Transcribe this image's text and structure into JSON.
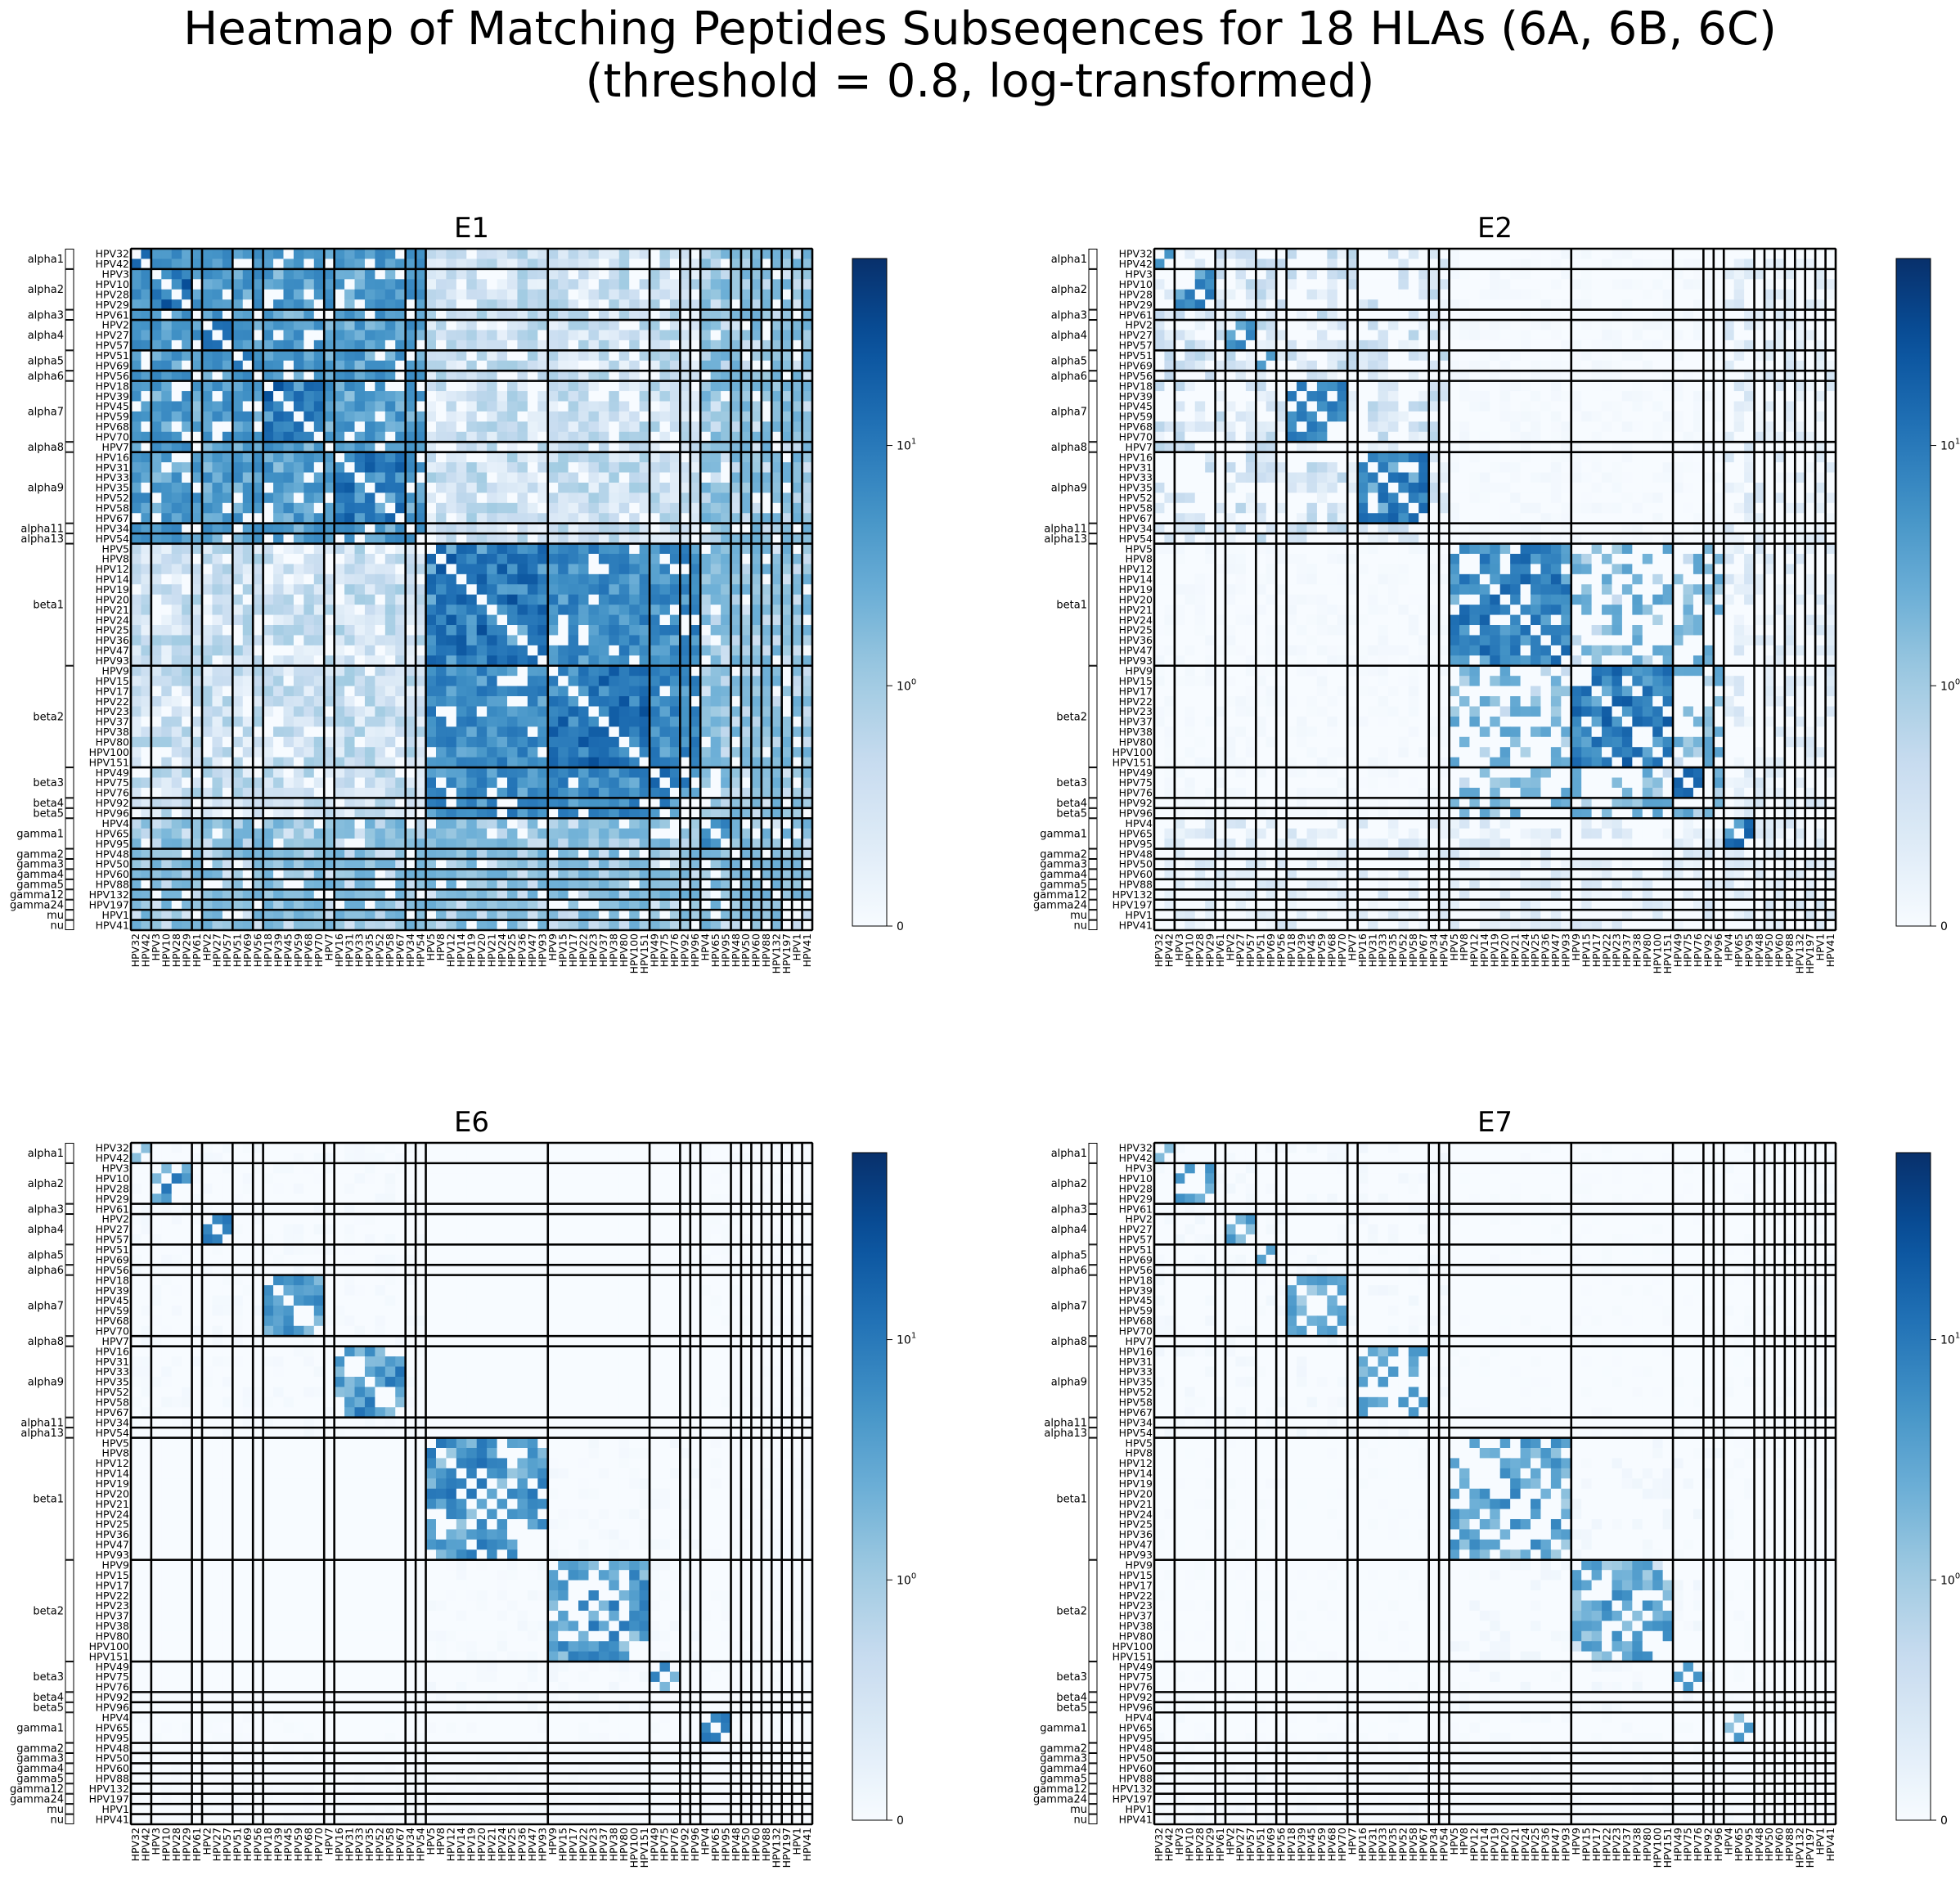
{
  "title": {
    "line1": "Heatmap of Matching Peptides Subseqences for 18 HLAs (6A, 6B, 6C)",
    "line2": "(threshold = 0.8, log-transformed)"
  },
  "colormap": {
    "name": "Blues",
    "low": "#f7fbff",
    "high": "#08306b"
  },
  "chart_data": {
    "type": "heatmap",
    "scale": "symlog",
    "vmax": 60,
    "colorbar_ticks": [
      "0",
      "10^0",
      "10^1"
    ],
    "hpv_types": [
      "HPV32",
      "HPV42",
      "HPV3",
      "HPV10",
      "HPV28",
      "HPV29",
      "HPV61",
      "HPV2",
      "HPV27",
      "HPV57",
      "HPV51",
      "HPV69",
      "HPV56",
      "HPV18",
      "HPV39",
      "HPV45",
      "HPV59",
      "HPV68",
      "HPV70",
      "HPV7",
      "HPV16",
      "HPV31",
      "HPV33",
      "HPV35",
      "HPV52",
      "HPV58",
      "HPV67",
      "HPV34",
      "HPV54",
      "HPV5",
      "HPV8",
      "HPV12",
      "HPV14",
      "HPV19",
      "HPV20",
      "HPV21",
      "HPV24",
      "HPV25",
      "HPV36",
      "HPV47",
      "HPV93",
      "HPV9",
      "HPV15",
      "HPV17",
      "HPV22",
      "HPV23",
      "HPV37",
      "HPV38",
      "HPV80",
      "HPV100",
      "HPV151",
      "HPV49",
      "HPV75",
      "HPV76",
      "HPV92",
      "HPV96",
      "HPV4",
      "HPV65",
      "HPV95",
      "HPV48",
      "HPV50",
      "HPV60",
      "HPV88",
      "HPV132",
      "HPV197",
      "HPV1",
      "HPV41"
    ],
    "groups": [
      {
        "name": "alpha1",
        "size": 2
      },
      {
        "name": "alpha2",
        "size": 4
      },
      {
        "name": "alpha3",
        "size": 1
      },
      {
        "name": "alpha4",
        "size": 3
      },
      {
        "name": "alpha5",
        "size": 2
      },
      {
        "name": "alpha6",
        "size": 1
      },
      {
        "name": "alpha7",
        "size": 6
      },
      {
        "name": "alpha8",
        "size": 1
      },
      {
        "name": "alpha9",
        "size": 7
      },
      {
        "name": "alpha11",
        "size": 1
      },
      {
        "name": "alpha13",
        "size": 1
      },
      {
        "name": "beta1",
        "size": 12
      },
      {
        "name": "beta2",
        "size": 10
      },
      {
        "name": "beta3",
        "size": 3
      },
      {
        "name": "beta4",
        "size": 1
      },
      {
        "name": "beta5",
        "size": 1
      },
      {
        "name": "gamma1",
        "size": 3
      },
      {
        "name": "gamma2",
        "size": 1
      },
      {
        "name": "gamma3",
        "size": 1
      },
      {
        "name": "gamma4",
        "size": 1
      },
      {
        "name": "gamma5",
        "size": 1
      },
      {
        "name": "gamma12",
        "size": 1
      },
      {
        "name": "gamma24",
        "size": 1
      },
      {
        "name": "mu",
        "size": 1
      },
      {
        "name": "nu",
        "size": 1
      }
    ],
    "panels": [
      {
        "title": "E1",
        "diag_block": 18,
        "on_block": 7,
        "cross_alpha": 4.5,
        "cross_beta": 7,
        "cross_other": 1.5,
        "alpha_beta": 0.6,
        "density": 0.85
      },
      {
        "title": "E2",
        "diag_block": 14,
        "on_block": 3,
        "cross_alpha": 0.5,
        "cross_beta": 2.2,
        "cross_other": 0.3,
        "alpha_beta": 0.05,
        "density": 0.45
      },
      {
        "title": "E6",
        "diag_block": 8,
        "on_block": 1.8,
        "cross_alpha": 0.04,
        "cross_beta": 0.05,
        "cross_other": 0.02,
        "alpha_beta": 0.0,
        "density": 0.35
      },
      {
        "title": "E7",
        "diag_block": 5,
        "on_block": 0.9,
        "cross_alpha": 0.06,
        "cross_beta": 0.07,
        "cross_other": 0.03,
        "alpha_beta": 0.02,
        "density": 0.22
      }
    ]
  }
}
